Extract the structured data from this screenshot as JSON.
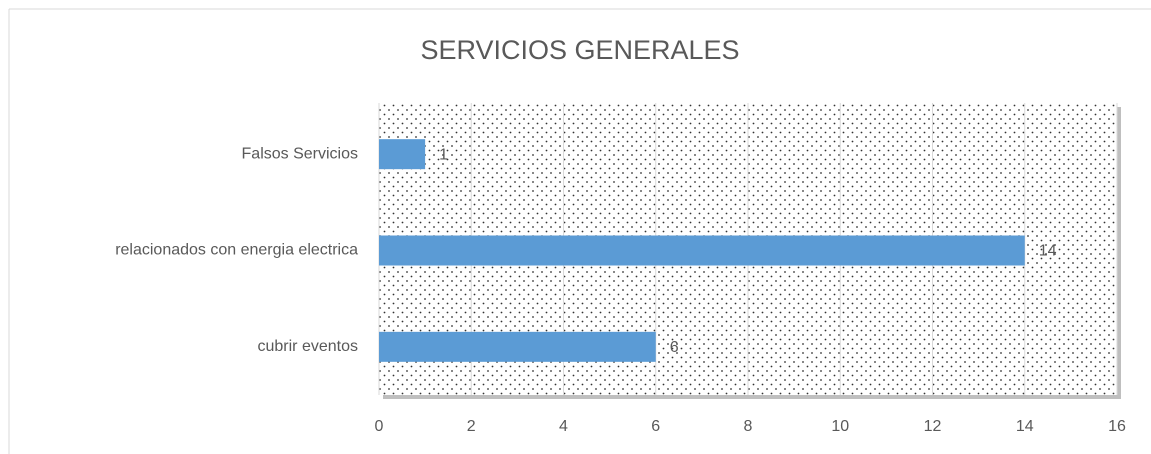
{
  "chart_data": {
    "type": "bar",
    "orientation": "horizontal",
    "title": "SERVICIOS  GENERALES",
    "categories": [
      "Falsos Servicios",
      "relacionados con energia electrica",
      "cubrir eventos"
    ],
    "values": [
      1,
      14,
      6
    ],
    "color": "#5b9bd5",
    "xlim": [
      0,
      16
    ],
    "xticks": [
      0,
      2,
      4,
      6,
      8,
      10,
      12,
      14,
      16
    ],
    "grid": true
  }
}
